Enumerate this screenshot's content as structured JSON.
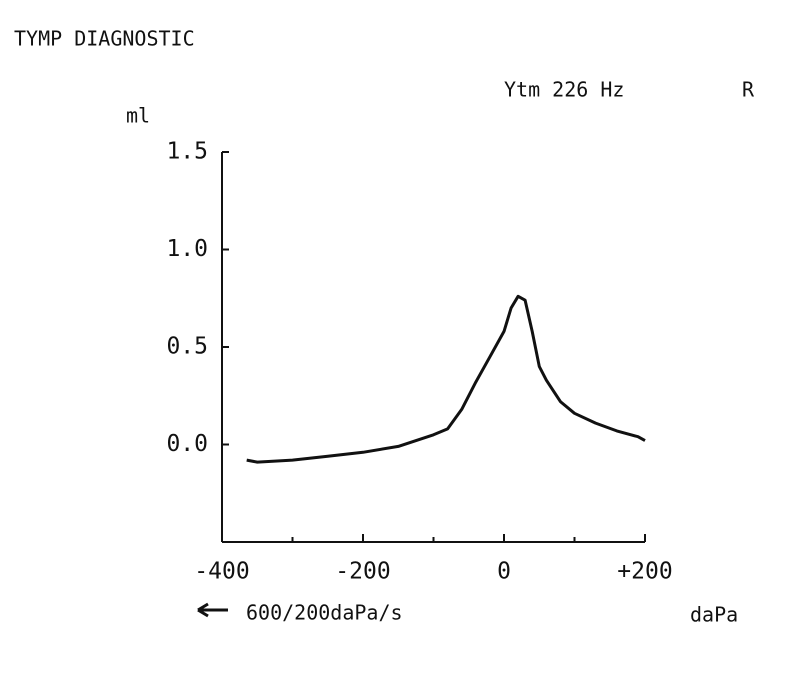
{
  "chart_data": {
    "type": "line",
    "title": "TYMP DIAGNOSTIC",
    "subtitle": "Ytm 226 Hz",
    "ear": "R",
    "y_label": "ml",
    "x_label": "daPa",
    "annotation": "600/200daPa/s",
    "x": [
      -365,
      -350,
      -300,
      -250,
      -200,
      -150,
      -100,
      -80,
      -60,
      -40,
      -20,
      0,
      10,
      20,
      30,
      40,
      50,
      60,
      80,
      100,
      130,
      160,
      190,
      200
    ],
    "series": [
      {
        "name": "Ytm",
        "color": "#111111",
        "values": [
          -0.08,
          -0.09,
          -0.08,
          -0.06,
          -0.04,
          -0.01,
          0.05,
          0.08,
          0.18,
          0.32,
          0.45,
          0.58,
          0.7,
          0.76,
          0.74,
          0.58,
          0.4,
          0.33,
          0.22,
          0.16,
          0.11,
          0.07,
          0.04,
          0.02
        ]
      }
    ],
    "xlim": [
      -400,
      200
    ],
    "xticks": [
      -400,
      -200,
      0,
      {
        "value": 200,
        "label": "+200"
      }
    ],
    "xminor_ticks": [
      -300,
      -100,
      100
    ],
    "ylim": [
      -0.5,
      1.5
    ],
    "yticks": [
      {
        "value": 0,
        "label": "0.0"
      },
      0.5,
      {
        "value": 1,
        "label": "1.0"
      },
      1.5
    ],
    "grid": false
  }
}
